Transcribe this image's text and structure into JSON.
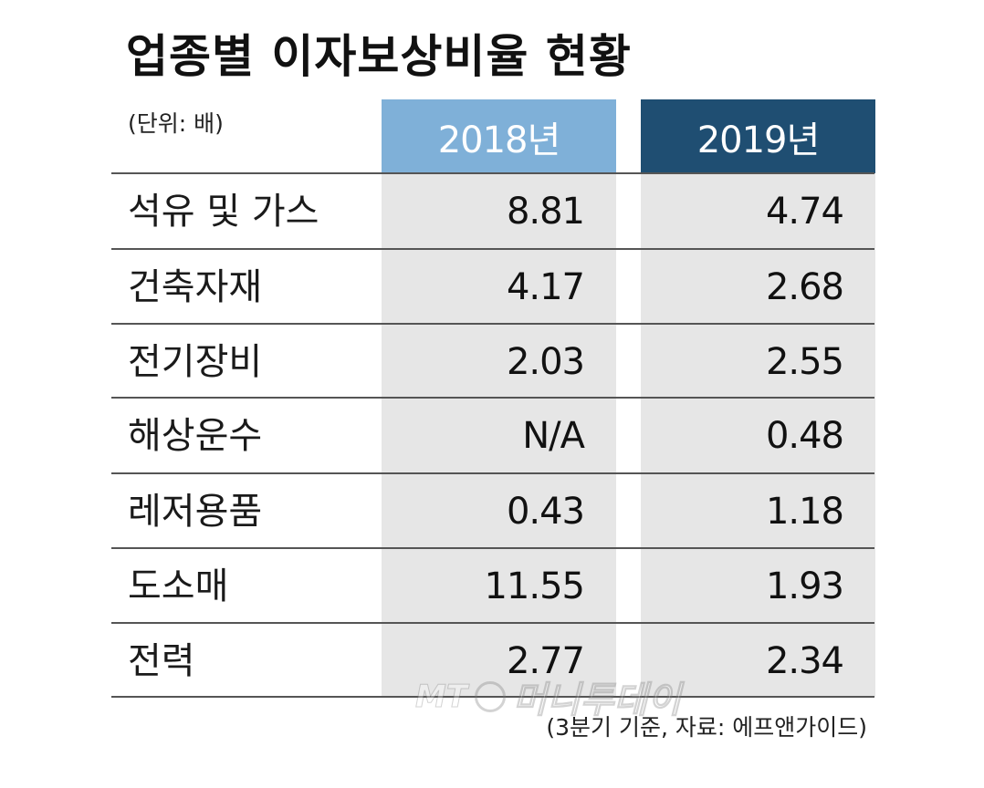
{
  "title": "업종별 이자보상비율 현황",
  "unit_label": "(단위: 배)",
  "source_label": "(3분기 기준, 자료: 에프앤가이드)",
  "watermark": {
    "logo": "MT",
    "text": "머니투데이"
  },
  "colors": {
    "header_2018": "#7fb0d8",
    "header_2019": "#1f4e72",
    "column_band": "#e6e6e6",
    "rule": "#555555"
  },
  "chart_data": {
    "type": "table",
    "title": "업종별 이자보상비율 현황",
    "unit": "(단위: 배)",
    "columns": [
      "2018년",
      "2019년"
    ],
    "rows": [
      {
        "label": "석유 및 가스",
        "values": [
          "8.81",
          "4.74"
        ]
      },
      {
        "label": "건축자재",
        "values": [
          "4.17",
          "2.68"
        ]
      },
      {
        "label": "전기장비",
        "values": [
          "2.03",
          "2.55"
        ]
      },
      {
        "label": "해상운수",
        "values": [
          "N/A",
          "0.48"
        ]
      },
      {
        "label": "레저용품",
        "values": [
          "0.43",
          "1.18"
        ]
      },
      {
        "label": "도소매",
        "values": [
          "11.55",
          "1.93"
        ]
      },
      {
        "label": "전력",
        "values": [
          "2.77",
          "2.34"
        ]
      }
    ]
  }
}
